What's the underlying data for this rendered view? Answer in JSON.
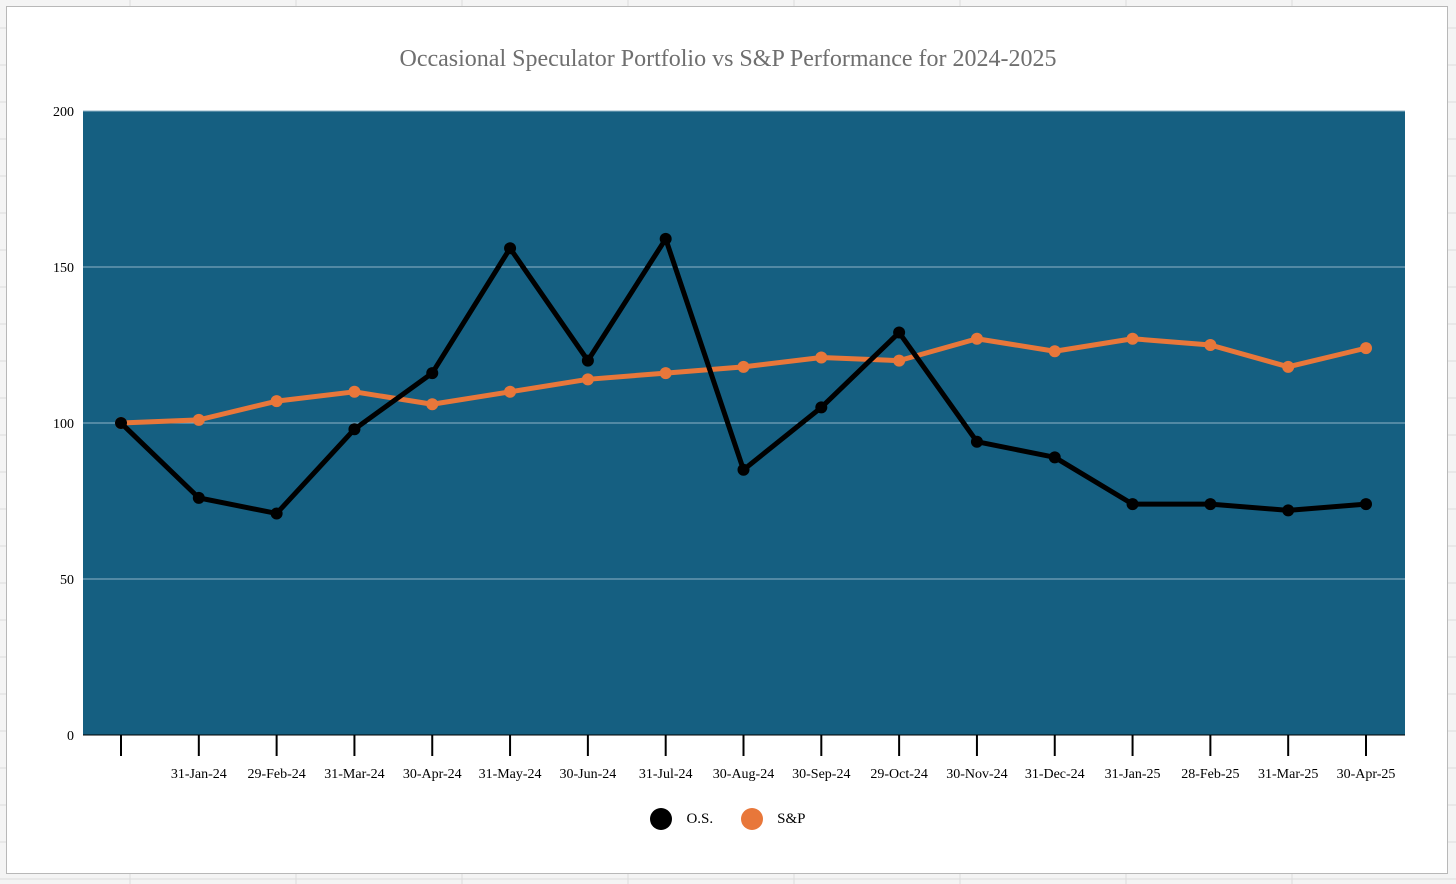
{
  "chart_data": {
    "type": "line",
    "title": "Occasional Speculator Portfolio vs S&P Performance for 2024-2025",
    "xlabel": "",
    "ylabel": "",
    "ylim": [
      0,
      200
    ],
    "yticks": [
      0,
      50,
      100,
      150,
      200
    ],
    "grid": true,
    "legend": "bottom",
    "plot_background": "#155f81",
    "categories": [
      "",
      "31-Jan-24",
      "29-Feb-24",
      "31-Mar-24",
      "30-Apr-24",
      "31-May-24",
      "30-Jun-24",
      "31-Jul-24",
      "30-Aug-24",
      "30-Sep-24",
      "29-Oct-24",
      "30-Nov-24",
      "31-Dec-24",
      "31-Jan-25",
      "28-Feb-25",
      "31-Mar-25",
      "30-Apr-25"
    ],
    "series": [
      {
        "name": "O.S.",
        "color": "#000000",
        "values": [
          100,
          76,
          71,
          98,
          116,
          156,
          120,
          159,
          85,
          105,
          129,
          94,
          89,
          74,
          74,
          72,
          74
        ]
      },
      {
        "name": "S&P",
        "color": "#e8773a",
        "values": [
          100,
          101,
          107,
          110,
          106,
          110,
          114,
          116,
          118,
          121,
          120,
          127,
          123,
          127,
          125,
          118,
          124
        ]
      }
    ]
  }
}
